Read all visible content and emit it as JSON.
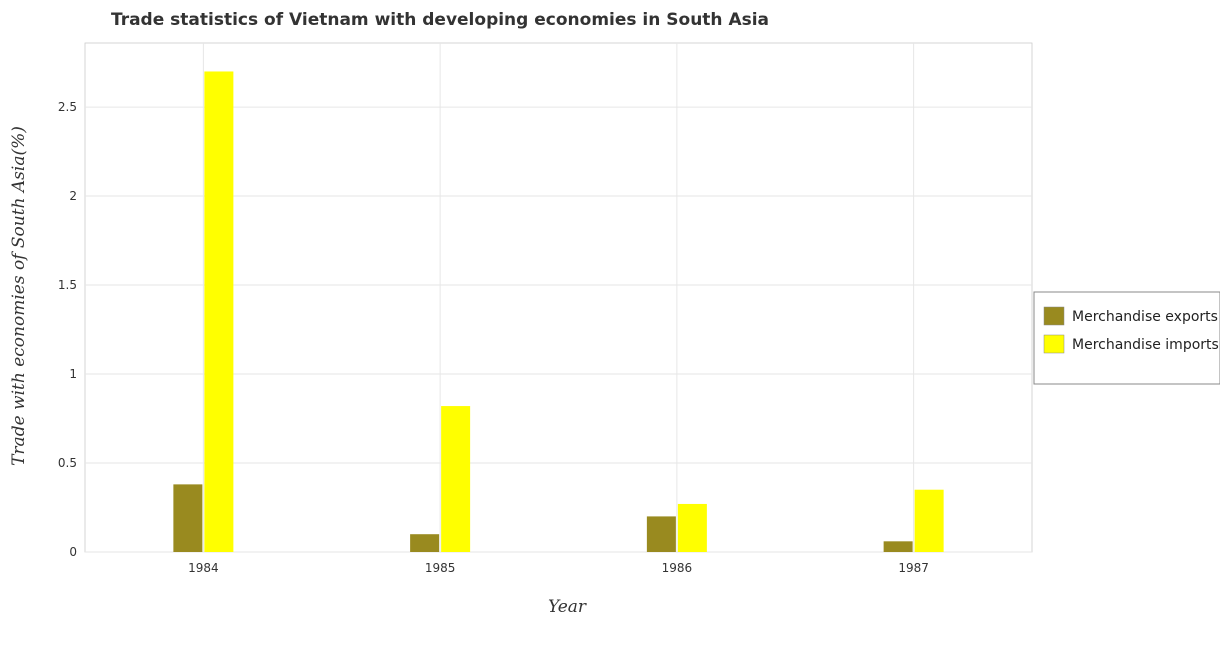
{
  "chart_data": {
    "type": "bar",
    "title": "Trade statistics of Vietnam with developing economies in South Asia",
    "xlabel": "Year",
    "ylabel": "Trade with economies of South Asia(%)",
    "categories": [
      "1984",
      "1985",
      "1986",
      "1987"
    ],
    "series": [
      {
        "name": "Merchandise exports",
        "color": "#998a1f",
        "values": [
          0.38,
          0.1,
          0.2,
          0.06
        ]
      },
      {
        "name": "Merchandise imports",
        "color": "#ffff00",
        "values": [
          2.7,
          0.82,
          0.27,
          0.35
        ]
      }
    ],
    "ylim": [
      0,
      2.86
    ],
    "yticks": [
      0,
      0.5,
      1,
      1.5,
      2,
      2.5
    ],
    "ytick_labels": [
      "0",
      "0.5",
      "1",
      "1.5",
      "2",
      "2.5"
    ],
    "grid": true,
    "legend_position": "right"
  }
}
